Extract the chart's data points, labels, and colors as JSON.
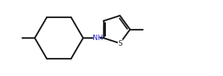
{
  "bg_color": "#ffffff",
  "line_color": "#1a1a1a",
  "line_width": 1.6,
  "nh_color": "#1a1acc",
  "s_color": "#1a1a1a",
  "figsize": [
    3.2,
    1.1
  ],
  "dpi": 100,
  "xlim": [
    0.0,
    10.0
  ],
  "ylim": [
    -1.8,
    1.8
  ]
}
